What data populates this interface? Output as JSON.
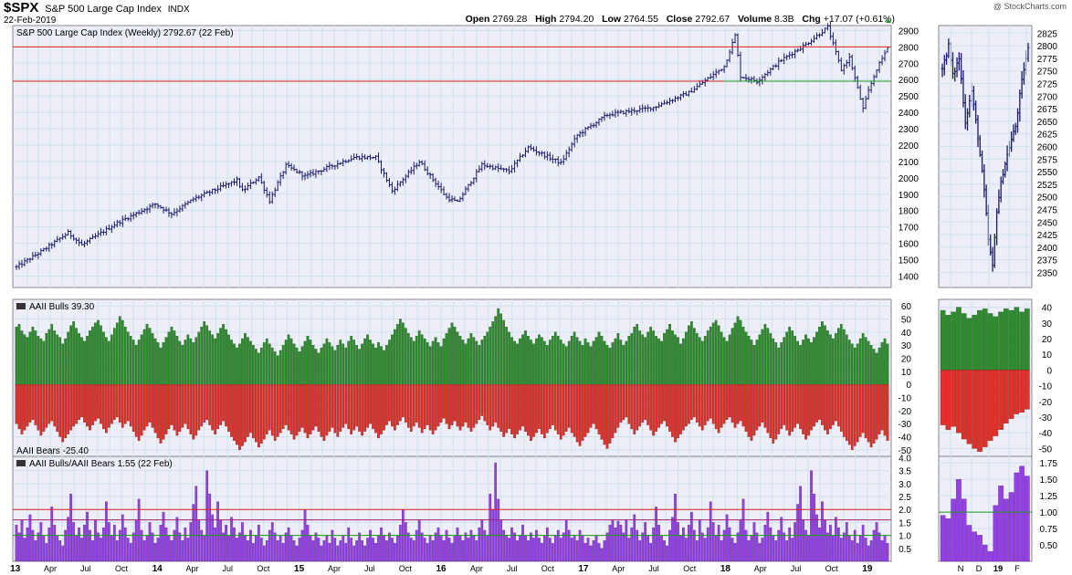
{
  "header": {
    "symbol": "$SPX",
    "name": "S&P 500 Large Cap Index",
    "exchange": "INDX",
    "date": "22-Feb-2019",
    "watermark": "@ StockCharts.com",
    "quote": {
      "open_label": "Open",
      "open": "2769.28",
      "high_label": "High",
      "high": "2794.20",
      "low_label": "Low",
      "low": "2764.55",
      "close_label": "Close",
      "close": "2792.67",
      "volume_label": "Volume",
      "volume": "8.3B",
      "chg_label": "Chg",
      "chg": "+17.07 (+0.61%)"
    }
  },
  "colors": {
    "panel_bg": "#edeef7",
    "grid": "#cfe3ee",
    "price_bar": "#1a1a6a",
    "bulls": "#2e8b2e",
    "bears": "#e0302a",
    "ratio": "#9440e6",
    "resistance": "#d22",
    "support": "#1a9a1a"
  },
  "x_axis_labels": [
    "13",
    "Apr",
    "Jul",
    "Oct",
    "14",
    "Apr",
    "Jul",
    "Oct",
    "15",
    "Apr",
    "Jul",
    "Oct",
    "16",
    "Apr",
    "Jul",
    "Oct",
    "17",
    "Apr",
    "Jul",
    "Oct",
    "18",
    "Apr",
    "Jul",
    "Oct",
    "19"
  ],
  "side_x_axis_labels": [
    "N",
    "D",
    "19",
    "F"
  ],
  "chart_data": [
    {
      "id": "price",
      "type": "ohlc",
      "title": "S&P 500 Large Cap Index (Weekly) 2792.67 (22 Feb)",
      "period": "weekly",
      "start": "2013-01-04",
      "end": "2019-02-22",
      "ylim": [
        1330,
        2930
      ],
      "yticks": [
        1400,
        1500,
        1600,
        1700,
        1800,
        1900,
        2000,
        2100,
        2200,
        2300,
        2400,
        2500,
        2600,
        2700,
        2800,
        2900
      ],
      "anchors": [
        [
          "2013-01-04",
          1455
        ],
        [
          "2013-03-15",
          1560
        ],
        [
          "2013-05-17",
          1665
        ],
        [
          "2013-06-21",
          1590
        ],
        [
          "2013-09-20",
          1725
        ],
        [
          "2013-12-27",
          1840
        ],
        [
          "2014-02-07",
          1780
        ],
        [
          "2014-04-04",
          1870
        ],
        [
          "2014-07-25",
          1985
        ],
        [
          "2014-08-08",
          1920
        ],
        [
          "2014-09-19",
          2005
        ],
        [
          "2014-10-17",
          1860
        ],
        [
          "2014-11-28",
          2075
        ],
        [
          "2015-01-16",
          2010
        ],
        [
          "2015-05-22",
          2125
        ],
        [
          "2015-07-17",
          2125
        ],
        [
          "2015-08-28",
          1920
        ],
        [
          "2015-11-06",
          2100
        ],
        [
          "2016-01-15",
          1880
        ],
        [
          "2016-02-12",
          1850
        ],
        [
          "2016-04-15",
          2080
        ],
        [
          "2016-06-24",
          2040
        ],
        [
          "2016-08-12",
          2185
        ],
        [
          "2016-11-04",
          2090
        ],
        [
          "2016-12-16",
          2260
        ],
        [
          "2017-03-03",
          2385
        ],
        [
          "2017-06-30",
          2430
        ],
        [
          "2017-09-29",
          2520
        ],
        [
          "2017-12-29",
          2680
        ],
        [
          "2018-01-26",
          2870
        ],
        [
          "2018-02-09",
          2620
        ],
        [
          "2018-03-23",
          2590
        ],
        [
          "2018-05-25",
          2720
        ],
        [
          "2018-07-27",
          2815
        ],
        [
          "2018-09-21",
          2920
        ],
        [
          "2018-10-26",
          2660
        ],
        [
          "2018-11-16",
          2735
        ],
        [
          "2018-12-21",
          2420
        ],
        [
          "2019-01-04",
          2530
        ],
        [
          "2019-01-25",
          2665
        ],
        [
          "2019-02-22",
          2792.67
        ]
      ],
      "last_bar": {
        "open": 2769.28,
        "high": 2794.2,
        "low": 2764.55,
        "close": 2792.67
      },
      "resistance_line": 2800,
      "support_line": 2590
    },
    {
      "id": "price_daily",
      "type": "ohlc",
      "period": "daily",
      "ylim": [
        2320,
        2840
      ],
      "yticks": [
        2350,
        2375,
        2400,
        2425,
        2450,
        2475,
        2500,
        2525,
        2550,
        2575,
        2600,
        2625,
        2650,
        2675,
        2700,
        2725,
        2750,
        2775,
        2800,
        2825
      ],
      "months": [
        "N",
        "D",
        "19",
        "F"
      ],
      "anchors": [
        [
          0,
          2755
        ],
        [
          3,
          2800
        ],
        [
          5,
          2740
        ],
        [
          8,
          2775
        ],
        [
          11,
          2650
        ],
        [
          14,
          2710
        ],
        [
          17,
          2620
        ],
        [
          20,
          2510
        ],
        [
          22,
          2415
        ],
        [
          24,
          2360
        ],
        [
          26,
          2475
        ],
        [
          29,
          2550
        ],
        [
          32,
          2600
        ],
        [
          35,
          2640
        ],
        [
          37,
          2700
        ],
        [
          39,
          2755
        ],
        [
          41,
          2793
        ]
      ]
    },
    {
      "id": "bulls_bears",
      "type": "bar",
      "period": "weekly",
      "ylim": [
        -55,
        65
      ],
      "yticks": [
        60,
        50,
        40,
        30,
        20,
        10,
        0,
        -10,
        -20,
        -30,
        -40,
        -50
      ],
      "series": [
        {
          "name": "AAII Bulls",
          "last": 39.3,
          "values": [
            44,
            46,
            41,
            38,
            36,
            40,
            44,
            41,
            37,
            35,
            33,
            39,
            42,
            46,
            41,
            38,
            36,
            31,
            35,
            40,
            45,
            48,
            43,
            39,
            36,
            33,
            37,
            41,
            44,
            47,
            49,
            45,
            40,
            36,
            33,
            38,
            43,
            47,
            52,
            49,
            44,
            40,
            37,
            34,
            30,
            34,
            38,
            42,
            46,
            43,
            39,
            35,
            32,
            28,
            32,
            36,
            40,
            44,
            41,
            37,
            33,
            30,
            34,
            38,
            35,
            32,
            36,
            40,
            44,
            48,
            45,
            41,
            38,
            35,
            39,
            43,
            46,
            42,
            38,
            34,
            31,
            28,
            31,
            35,
            39,
            36,
            33,
            30,
            27,
            24,
            28,
            32,
            35,
            31,
            28,
            25,
            22,
            26,
            30,
            34,
            38,
            35,
            31,
            28,
            25,
            29,
            33,
            37,
            34,
            30,
            27,
            24,
            28,
            31,
            35,
            32,
            29,
            26,
            30,
            34,
            31,
            28,
            33,
            37,
            34,
            30,
            27,
            31,
            35,
            38,
            34,
            31,
            28,
            32,
            29,
            26,
            30,
            34,
            38,
            42,
            46,
            50,
            47,
            43,
            39,
            36,
            33,
            37,
            41,
            38,
            35,
            32,
            29,
            33,
            36,
            32,
            29,
            35,
            39,
            43,
            47,
            44,
            40,
            37,
            34,
            31,
            35,
            39,
            36,
            33,
            30,
            34,
            37,
            40,
            44,
            48,
            52,
            58,
            54,
            49,
            44,
            40,
            36,
            33,
            31,
            35,
            38,
            41,
            37,
            34,
            31,
            35,
            38,
            36,
            33,
            30,
            34,
            37,
            40,
            37,
            34,
            31,
            29,
            33,
            37,
            40,
            36,
            33,
            30,
            35,
            32,
            29,
            33,
            36,
            40,
            37,
            33,
            30,
            28,
            32,
            35,
            39,
            34,
            30,
            33,
            37,
            39
          ]
        },
        {
          "name": "AAII Bears",
          "last": -25.4,
          "values": [
            -30,
            -34,
            -38,
            -35,
            -32,
            -29,
            -27,
            -31,
            -35,
            -39,
            -36,
            -33,
            -30,
            -28,
            -32,
            -36,
            -40,
            -44,
            -41,
            -38,
            -35,
            -32,
            -30,
            -27,
            -25,
            -29,
            -32,
            -35,
            -31,
            -28,
            -26,
            -30,
            -34,
            -37,
            -33,
            -30,
            -27,
            -25,
            -29,
            -33,
            -30,
            -28,
            -32,
            -36,
            -40,
            -43,
            -39,
            -35,
            -32,
            -29,
            -33,
            -37,
            -41,
            -45,
            -42,
            -38,
            -34,
            -31,
            -35,
            -39,
            -36,
            -33,
            -30,
            -34,
            -38,
            -42,
            -39,
            -35,
            -32,
            -29,
            -27,
            -31,
            -35,
            -38,
            -34,
            -31,
            -28,
            -32,
            -36,
            -40,
            -43,
            -46,
            -50,
            -47,
            -44,
            -40,
            -37,
            -41,
            -44,
            -48,
            -45,
            -42,
            -38,
            -35,
            -39,
            -43,
            -40,
            -37,
            -34,
            -31,
            -35,
            -38,
            -42,
            -39,
            -36,
            -33,
            -37,
            -41,
            -38,
            -35,
            -32,
            -36,
            -40,
            -43,
            -39,
            -36,
            -33,
            -37,
            -40,
            -36,
            -33,
            -30,
            -34,
            -38,
            -35,
            -32,
            -36,
            -39,
            -36,
            -33,
            -30,
            -34,
            -37,
            -41,
            -38,
            -35,
            -31,
            -28,
            -32,
            -35,
            -31,
            -28,
            -25,
            -29,
            -33,
            -36,
            -32,
            -29,
            -33,
            -37,
            -34,
            -31,
            -35,
            -38,
            -35,
            -32,
            -29,
            -26,
            -30,
            -34,
            -31,
            -28,
            -32,
            -35,
            -32,
            -29,
            -33,
            -36,
            -33,
            -30,
            -27,
            -24,
            -28,
            -31,
            -35,
            -32,
            -29,
            -33,
            -36,
            -40,
            -37,
            -34,
            -38,
            -41,
            -38,
            -35,
            -32,
            -36,
            -39,
            -43,
            -40,
            -37,
            -34,
            -38,
            -41,
            -37,
            -34,
            -31,
            -35,
            -38,
            -42,
            -39,
            -36,
            -33,
            -37,
            -40,
            -44,
            -47,
            -43,
            -40,
            -37,
            -33,
            -30,
            -34,
            -38,
            -42,
            -46,
            -49,
            -45,
            -41,
            -37,
            -33,
            -29,
            -27,
            -25
          ]
        }
      ]
    },
    {
      "id": "bulls_bears_daily",
      "type": "bar",
      "period": "daily",
      "ylim": [
        -55,
        45
      ],
      "yticks": [
        40,
        30,
        20,
        10,
        0,
        -10,
        -20,
        -30,
        -40,
        -50
      ],
      "series": [
        {
          "name": "AAII Bulls",
          "values": [
            38,
            35,
            37,
            40,
            36,
            33,
            35,
            38,
            39,
            36,
            34,
            37,
            39,
            38,
            40,
            37,
            39
          ]
        },
        {
          "name": "AAII Bears",
          "values": [
            -35,
            -38,
            -36,
            -40,
            -44,
            -47,
            -50,
            -52,
            -49,
            -45,
            -42,
            -38,
            -34,
            -31,
            -28,
            -27,
            -25
          ]
        }
      ]
    },
    {
      "id": "ratio",
      "type": "bar",
      "title": "AAII Bulls/AAII Bears 1.55 (22 Feb)",
      "period": "weekly",
      "ylim": [
        0,
        4.05
      ],
      "yticks": [
        0.5,
        1.0,
        1.5,
        2.0,
        2.5,
        3.0,
        3.5,
        4.0
      ],
      "ref_lines": [
        2.0,
        1.6,
        1.0
      ],
      "series": [
        {
          "name": "AAII Bulls/AAII Bears",
          "values": [
            1.4,
            1.1,
            1.6,
            0.9,
            1.3,
            1.8,
            1.2,
            0.8,
            1.1,
            1.5,
            1.0,
            0.7,
            1.3,
            2.1,
            1.4,
            1.0,
            0.8,
            0.6,
            1.2,
            1.7,
            2.6,
            1.5,
            1.0,
            1.3,
            0.9,
            1.4,
            1.9,
            1.2,
            0.8,
            1.6,
            1.1,
            0.9,
            1.3,
            2.3,
            1.5,
            1.0,
            1.4,
            0.8,
            1.2,
            1.8,
            1.3,
            0.9,
            0.7,
            1.1,
            1.6,
            2.4,
            1.2,
            0.8,
            1.0,
            1.5,
            1.1,
            0.7,
            0.9,
            1.4,
            1.9,
            1.3,
            1.0,
            0.8,
            1.2,
            1.7,
            1.1,
            0.8,
            1.3,
            0.9,
            1.5,
            2.2,
            2.9,
            1.6,
            1.2,
            1.0,
            3.5,
            2.6,
            1.8,
            1.3,
            2.3,
            1.6,
            1.1,
            1.4,
            1.0,
            1.7,
            1.3,
            0.9,
            1.1,
            1.5,
            1.0,
            0.8,
            1.2,
            0.7,
            1.0,
            1.4,
            0.9,
            0.6,
            0.8,
            1.2,
            1.5,
            1.1,
            0.8,
            1.0,
            0.7,
            1.1,
            1.3,
            1.0,
            0.8,
            0.6,
            0.9,
            1.2,
            2.0,
            1.4,
            1.0,
            0.8,
            1.1,
            0.9,
            0.6,
            0.8,
            1.0,
            0.7,
            1.2,
            0.9,
            0.6,
            0.8,
            1.0,
            0.7,
            1.3,
            0.9,
            0.6,
            0.8,
            1.1,
            0.8,
            0.6,
            0.9,
            1.2,
            0.9,
            0.7,
            1.0,
            1.3,
            1.0,
            0.8,
            1.1,
            0.9,
            0.7,
            1.0,
            1.4,
            2.0,
            1.5,
            1.1,
            0.9,
            0.8,
            1.2,
            1.6,
            1.1,
            0.9,
            0.7,
            1.0,
            0.8,
            1.1,
            1.3,
            1.0,
            0.8,
            1.2,
            0.9,
            0.7,
            1.0,
            1.3,
            1.0,
            0.8,
            1.1,
            0.9,
            1.2,
            1.0,
            0.8,
            1.3,
            1.6,
            1.2,
            1.0,
            2.6,
            2.0,
            3.8,
            2.4,
            1.6,
            1.2,
            1.0,
            0.9,
            1.3,
            1.1,
            0.8,
            1.0,
            1.4,
            1.0,
            0.8,
            1.1,
            0.9,
            1.2,
            0.9,
            0.7,
            1.0,
            1.3,
            0.9,
            0.7,
            1.0,
            1.2,
            0.9,
            1.1,
            1.6,
            1.2,
            0.9,
            1.0,
            0.8,
            1.2,
            1.0,
            0.7,
            0.9,
            0.6,
            0.8,
            1.0,
            0.7,
            0.5,
            0.8,
            1.1,
            1.4,
            1.6,
            1.3,
            1.55
          ]
        }
      ]
    },
    {
      "id": "ratio_daily",
      "type": "bar",
      "period": "daily",
      "ylim": [
        0.25,
        1.85
      ],
      "yticks": [
        0.5,
        0.75,
        1.0,
        1.25,
        1.5,
        1.75
      ],
      "ref_lines": [
        1.0
      ],
      "series": [
        {
          "name": "AAII Bulls/AAII Bears",
          "values": [
            0.95,
            0.9,
            1.2,
            1.5,
            1.2,
            0.8,
            0.7,
            0.65,
            0.5,
            0.4,
            1.1,
            1.4,
            1.2,
            1.3,
            1.6,
            1.7,
            1.55
          ]
        }
      ]
    }
  ]
}
